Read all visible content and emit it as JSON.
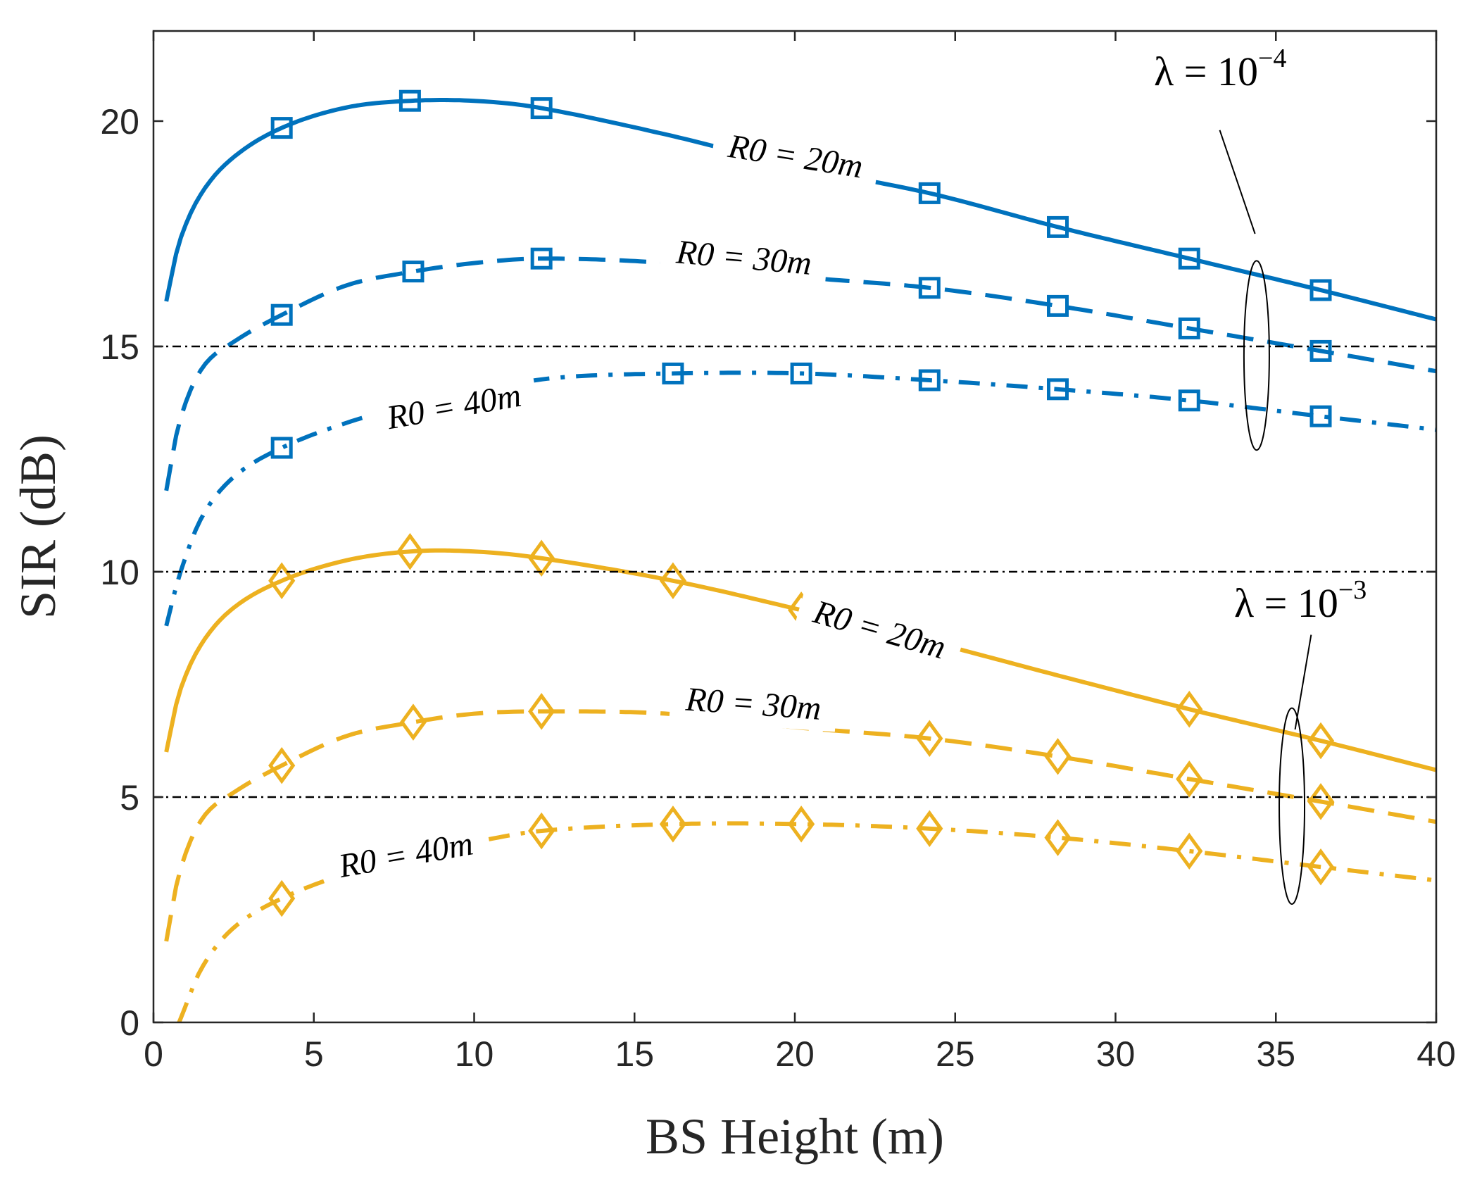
{
  "chart_data": {
    "type": "line",
    "title": "",
    "xlabel": "BS Height (m)",
    "ylabel": "SIR (dB)",
    "xlim": [
      0,
      40
    ],
    "ylim": [
      0,
      22
    ],
    "xticks": [
      "0",
      "5",
      "10",
      "15",
      "20",
      "25",
      "30",
      "35",
      "40"
    ],
    "yticks": [
      "0",
      "5",
      "10",
      "15",
      "20"
    ],
    "reference_lines": [
      5,
      10,
      15
    ],
    "colors": {
      "blue": "#0072BD",
      "yellow": "#EDB120",
      "reference": "#000000"
    },
    "group_labels": [
      {
        "id": "lam4",
        "base": "λ = 10",
        "exp": "−4"
      },
      {
        "id": "lam3",
        "base": "λ = 10",
        "exp": "−3"
      }
    ],
    "series": [
      {
        "name": "λ=10^-4, R0=20m",
        "label": "R0 = 20m",
        "color": "blue",
        "dash": "solid",
        "marker": "square",
        "x": [
          0.4,
          0.8,
          1.5,
          2.5,
          4,
          6,
          8,
          10,
          12,
          16,
          20,
          24.2,
          28.2,
          32.3,
          36.4,
          40
        ],
        "y": [
          16.0,
          17.3,
          18.4,
          19.2,
          19.85,
          20.3,
          20.45,
          20.45,
          20.3,
          19.7,
          19.0,
          18.4,
          17.65,
          16.95,
          16.25,
          15.6
        ],
        "markers_x": [
          4,
          8,
          12.1,
          24.2,
          28.2,
          32.3,
          36.4
        ]
      },
      {
        "name": "λ=10^-4, R0=30m",
        "label": "R0 = 30m",
        "color": "blue",
        "dash": "dashed",
        "marker": "square",
        "x": [
          0.4,
          0.8,
          1.5,
          2.5,
          4,
          6,
          8,
          10,
          12.1,
          16,
          20,
          24.2,
          28.2,
          32.3,
          36.4,
          40
        ],
        "y": [
          11.8,
          13.3,
          14.5,
          15.1,
          15.7,
          16.35,
          16.65,
          16.85,
          16.95,
          16.85,
          16.55,
          16.3,
          15.9,
          15.4,
          14.9,
          14.45
        ],
        "markers_x": [
          4,
          8.1,
          12.1,
          24.2,
          28.2,
          32.3,
          36.4
        ]
      },
      {
        "name": "λ=10^-4, R0=40m",
        "label": "R0 = 40m",
        "color": "blue",
        "dash": "dashdot",
        "marker": "square",
        "x": [
          0.4,
          0.8,
          1.5,
          2.5,
          4,
          6,
          8,
          10,
          12.5,
          16.2,
          20.2,
          24.2,
          28.2,
          32.3,
          36.4,
          40
        ],
        "y": [
          8.8,
          9.9,
          11.2,
          12.1,
          12.75,
          13.3,
          13.7,
          14.0,
          14.3,
          14.4,
          14.4,
          14.25,
          14.05,
          13.8,
          13.45,
          13.15
        ],
        "markers_x": [
          4,
          16.2,
          20.2,
          24.2,
          28.2,
          32.3,
          36.4
        ]
      },
      {
        "name": "λ=10^-3, R0=20m",
        "label": "R0 = 20m",
        "color": "yellow",
        "dash": "solid",
        "marker": "diamond",
        "x": [
          0.4,
          0.8,
          1.5,
          2.5,
          4,
          6,
          8,
          10,
          12.1,
          16.2,
          20.2,
          24.2,
          28.2,
          32.3,
          36.4,
          40
        ],
        "y": [
          6.0,
          7.3,
          8.4,
          9.2,
          9.8,
          10.25,
          10.45,
          10.45,
          10.3,
          9.8,
          9.15,
          8.45,
          7.7,
          6.95,
          6.25,
          5.6
        ],
        "markers_x": [
          4,
          8,
          12.1,
          16.2,
          20.2,
          32.3,
          36.4
        ]
      },
      {
        "name": "λ=10^-3, R0=30m",
        "label": "R0 = 30m",
        "color": "yellow",
        "dash": "dashed",
        "marker": "diamond",
        "x": [
          0.4,
          0.8,
          1.5,
          2.5,
          4,
          6,
          8,
          10,
          12.1,
          16,
          20,
          24.2,
          28.2,
          32.3,
          36.4,
          40
        ],
        "y": [
          1.8,
          3.3,
          4.5,
          5.1,
          5.7,
          6.35,
          6.65,
          6.85,
          6.9,
          6.85,
          6.55,
          6.3,
          5.9,
          5.4,
          4.9,
          4.45
        ],
        "markers_x": [
          4,
          8.1,
          12.1,
          24.2,
          28.2,
          32.3,
          36.4
        ]
      },
      {
        "name": "λ=10^-3, R0=40m",
        "label": "R0 = 40m",
        "color": "yellow",
        "dash": "dashdot",
        "marker": "diamond",
        "x": [
          0.8,
          1.5,
          2.5,
          4,
          6,
          8,
          10,
          12.1,
          16.2,
          20.2,
          24.2,
          28.2,
          32.3,
          36.4,
          40
        ],
        "y": [
          0.0,
          1.2,
          2.1,
          2.75,
          3.3,
          3.7,
          4.0,
          4.25,
          4.4,
          4.4,
          4.3,
          4.1,
          3.8,
          3.45,
          3.15
        ],
        "markers_x": [
          4,
          12.1,
          16.2,
          20.2,
          24.2,
          28.2,
          32.3,
          36.4
        ]
      }
    ]
  }
}
